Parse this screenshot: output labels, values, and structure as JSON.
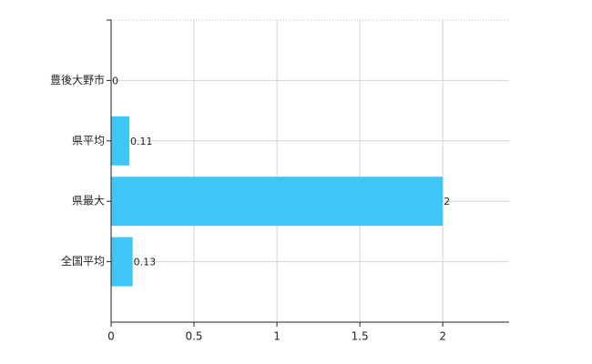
{
  "chart_data": {
    "type": "hbar",
    "categories": [
      "豊後大野市",
      "県平均",
      "県最大",
      "全国平均"
    ],
    "values": [
      0,
      0.11,
      2,
      0.13
    ],
    "color": "#3ec6f7",
    "xlim": [
      0,
      2.4
    ],
    "xticks": [
      0,
      0.5,
      1,
      1.5,
      2
    ],
    "grid": true,
    "data_labels": true
  }
}
